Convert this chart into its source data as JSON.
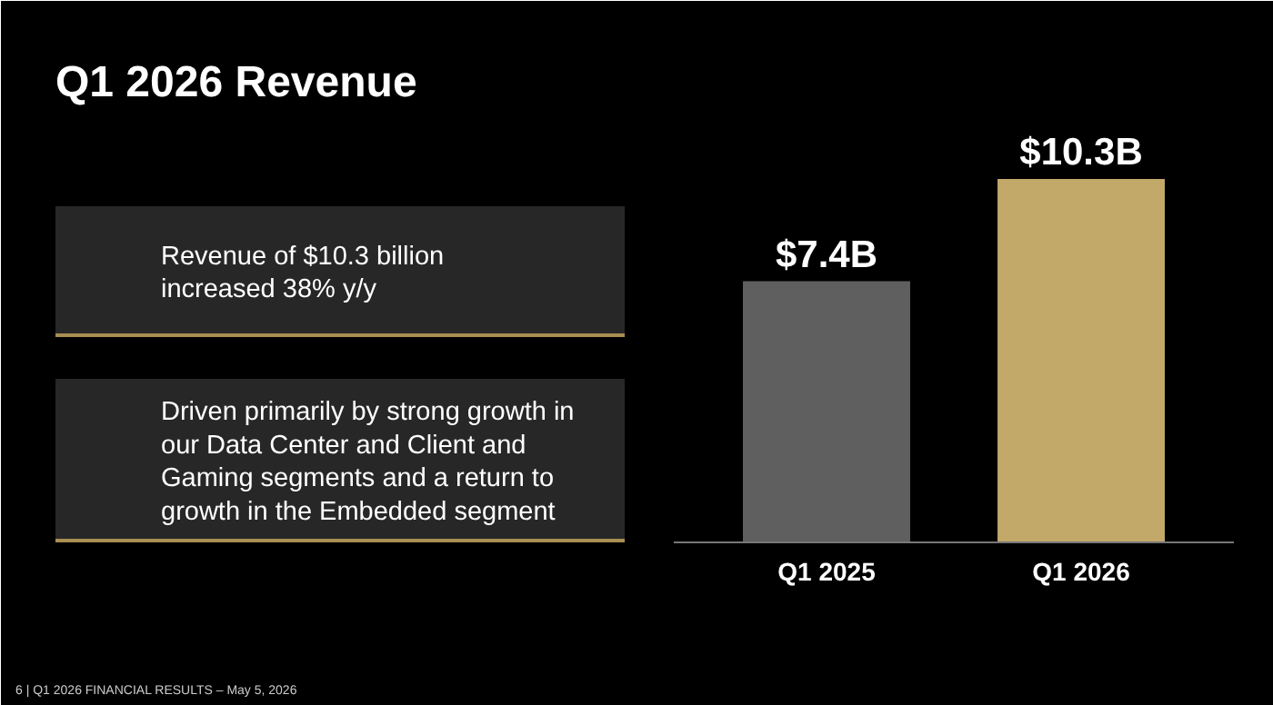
{
  "chart_data": {
    "type": "bar",
    "title": "Q1 2026 Revenue",
    "categories": [
      "Q1 2025",
      "Q1 2026"
    ],
    "values": [
      7.4,
      10.3
    ],
    "colors": [
      "#5f5f5f",
      "#c2a96a"
    ],
    "value_labels": [
      "$7.4B",
      "$10.3B"
    ],
    "annotations": [
      "Revenue of $10.3 billion\nincreased 38% y/y",
      "Driven primarily by strong growth in\nour Data Center and Client and\nGaming segments and a return to\ngrowth in the Embedded segment",
      "6   |  Q1 2026 FINANCIAL RESULTS – May 5, 2026"
    ]
  }
}
